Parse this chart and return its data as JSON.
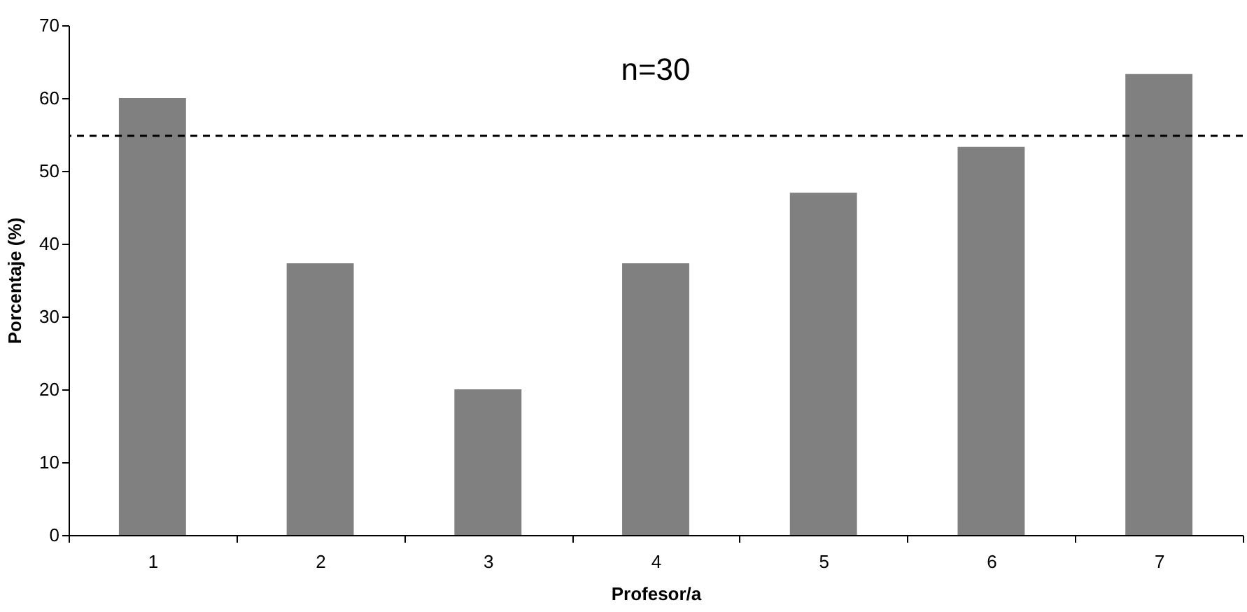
{
  "chart_data": {
    "type": "bar",
    "xlabel": "Profesor/a",
    "ylabel": "Porcentaje (%)",
    "categories": [
      "1",
      "2",
      "3",
      "4",
      "5",
      "6",
      "7"
    ],
    "series": [
      {
        "color": "#808080",
        "values": [
          60,
          37.3,
          20,
          37.3,
          47,
          53.3,
          63.3
        ]
      }
    ],
    "ylim": [
      0,
      70
    ],
    "yticks": [
      0,
      10,
      20,
      30,
      40,
      50,
      60,
      70
    ],
    "grid": false,
    "ref_lines": [
      {
        "axis": "y",
        "value": 54.8,
        "color": "#000000",
        "line_style": "dashed"
      }
    ],
    "annotations": [
      "n=30"
    ]
  }
}
